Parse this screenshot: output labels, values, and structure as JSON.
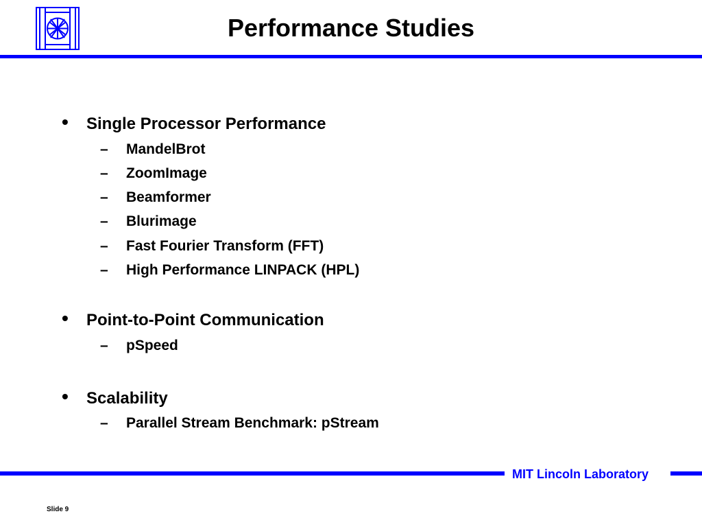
{
  "slide": {
    "title": "Performance Studies",
    "footer_lab": "MIT Lincoln Laboratory",
    "slide_number": "Slide 9",
    "accent_color": "#0000ff"
  },
  "bullets": [
    {
      "text": "Single Processor Performance",
      "subs": [
        "MandelBrot",
        "ZoomImage",
        "Beamformer",
        "Blurimage",
        "Fast Fourier Transform (FFT)",
        "High Performance LINPACK (HPL)"
      ]
    },
    {
      "text": "Point-to-Point Communication",
      "subs": [
        "pSpeed"
      ]
    },
    {
      "text": "Scalability",
      "subs": [
        "Parallel Stream Benchmark: pStream"
      ]
    }
  ],
  "icons": {
    "logo": "mit-ll-logo-icon"
  }
}
